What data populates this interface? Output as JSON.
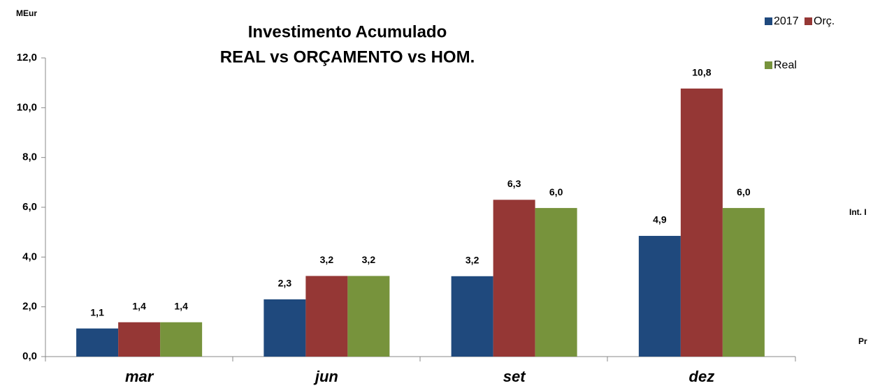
{
  "chart_data": {
    "type": "bar",
    "title": [
      "Investimento Acumulado",
      "REAL vs ORÇAMENTO vs HOM."
    ],
    "y_label": "MEur",
    "annotations": [
      "Int. I",
      "Pr"
    ],
    "categories": [
      "mar",
      "jun",
      "set",
      "dez"
    ],
    "series": [
      {
        "name": "2017",
        "color": "#1f497d",
        "values": [
          1.13,
          2.3,
          3.23,
          4.85
        ],
        "value_labels": [
          "1,1",
          "2,3",
          "3,2",
          "4,9"
        ]
      },
      {
        "name": "Orç.",
        "color": "#953735",
        "values": [
          1.38,
          3.24,
          6.3,
          10.77
        ],
        "value_labels": [
          "1,4",
          "3,2",
          "6,3",
          "10,8"
        ]
      },
      {
        "name": "Real",
        "color": "#77933c",
        "values": [
          1.38,
          3.24,
          5.97,
          5.97
        ],
        "value_labels": [
          "1,4",
          "3,2",
          "6,0",
          "6,0"
        ]
      }
    ],
    "ylim": [
      0,
      12
    ],
    "yticks": [
      {
        "value": 0,
        "label": "0,0"
      },
      {
        "value": 2,
        "label": "2,0"
      },
      {
        "value": 4,
        "label": "4,0"
      },
      {
        "value": 6,
        "label": "6,0"
      },
      {
        "value": 8,
        "label": "8,0"
      },
      {
        "value": 10,
        "label": "10,0"
      },
      {
        "value": 12,
        "label": "12,0"
      }
    ],
    "grid": false
  }
}
